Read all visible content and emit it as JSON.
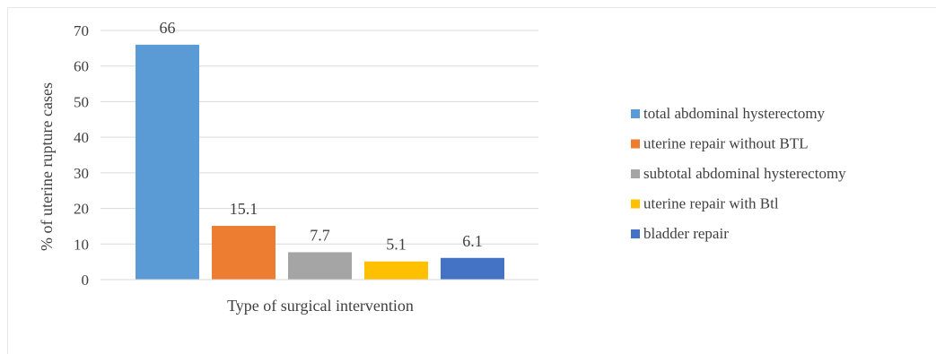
{
  "chart_data": {
    "type": "bar",
    "xlabel": "Type of surgical intervention",
    "ylabel": "% of uterine rupture cases",
    "ylim": [
      0,
      70
    ],
    "yticks": [
      0,
      10,
      20,
      30,
      40,
      50,
      60,
      70
    ],
    "grid": true,
    "legend_position": "right",
    "series": [
      {
        "name": "total abdominal hysterectomy",
        "value": 66,
        "label": "66",
        "color": "#5b9bd5"
      },
      {
        "name": "uterine repair without BTL",
        "value": 15.1,
        "label": "15.1",
        "color": "#ed7d31"
      },
      {
        "name": "subtotal abdominal hysterectomy",
        "value": 7.7,
        "label": "7.7",
        "color": "#a5a5a5"
      },
      {
        "name": "uterine repair with Btl",
        "value": 5.1,
        "label": "5.1",
        "color": "#ffc000"
      },
      {
        "name": "bladder repair",
        "value": 6.1,
        "label": "6.1",
        "color": "#4472c4"
      }
    ]
  }
}
